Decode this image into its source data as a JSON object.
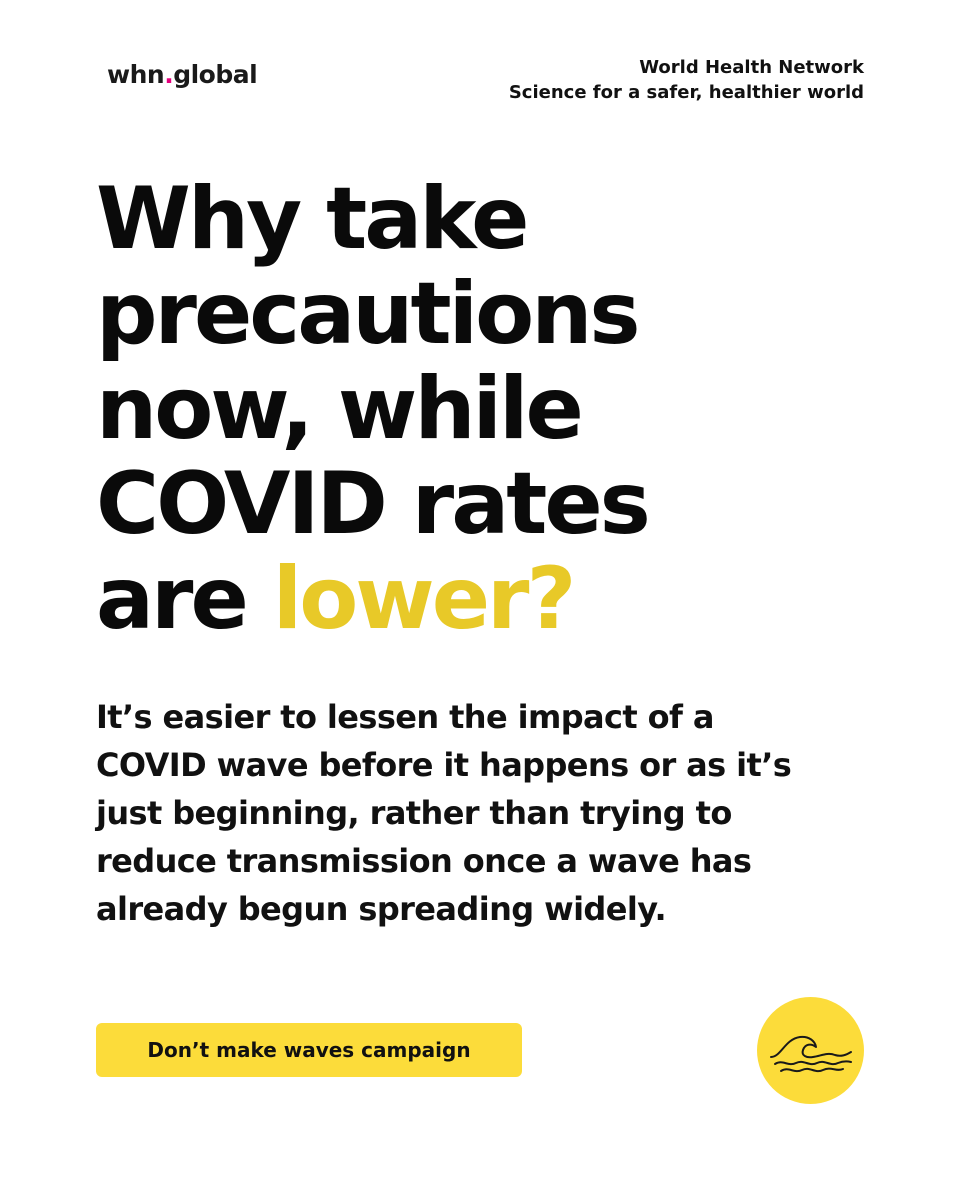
{
  "header": {
    "logo_prefix": "whn",
    "logo_dot": ".",
    "logo_suffix": "global",
    "org_name": "World Health Network",
    "tagline": "Science for a safer, healthier world"
  },
  "headline": {
    "line1": "Why take",
    "line2": "precautions",
    "line3": "now, while",
    "line4": "COVID rates",
    "line5_prefix": "are ",
    "line5_accent": "lower?"
  },
  "body": {
    "lines": [
      "It’s easier to lessen the impact of a",
      "COVID wave before it happens or as it’s",
      "just beginning, rather than trying to",
      "reduce transmission once a wave has",
      "already begun spreading widely."
    ]
  },
  "footer": {
    "campaign_label": "Don’t make waves campaign",
    "badge_icon": "wave-icon"
  },
  "colors": {
    "accent_text": "#e8c928",
    "button_bg": "#fcdc3a",
    "logo_dot": "#e5007d"
  }
}
